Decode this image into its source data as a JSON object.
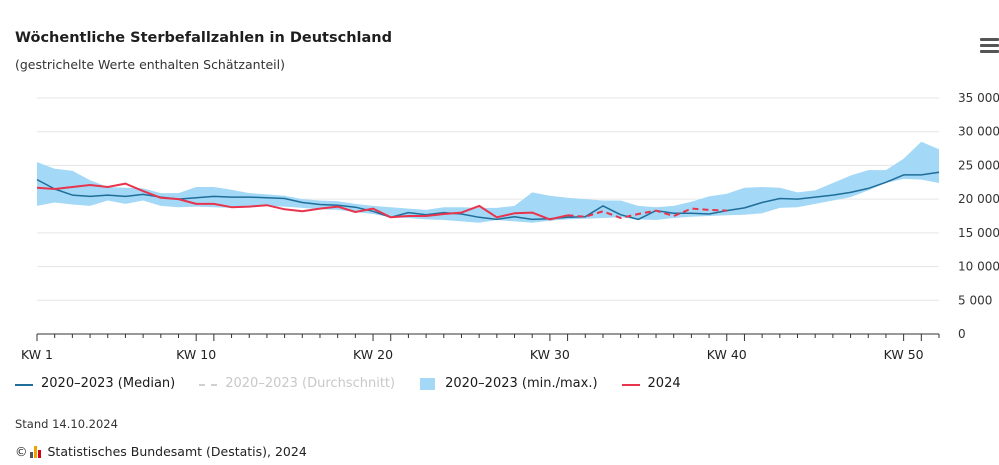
{
  "header": {
    "title": "Wöchentliche Sterbefallzahlen in Deutschland",
    "subtitle": "(gestrichelte Werte enthalten Schätzanteil)"
  },
  "legend": {
    "median": "2020–2023 (Median)",
    "mean": "2020–2023 (Durchschnitt)",
    "range": "2020–2023 (min./max.)",
    "current": "2024"
  },
  "footer": {
    "stand": "Stand 14.10.2024",
    "copyright": "©",
    "source": "Statistisches Bundesamt (Destatis), 2024"
  },
  "colors": {
    "median": "#1f6e99",
    "range": "#a3d8f7",
    "current": "#e8344d",
    "mean_muted": "#d0d0d0",
    "grid": "#e6e6e6",
    "axis": "#333333"
  },
  "chart_data": {
    "type": "line",
    "x_ticks": [
      "KW 1",
      "KW 10",
      "KW 20",
      "KW 30",
      "KW 40",
      "KW 50"
    ],
    "x_tick_weeks": [
      1,
      10,
      20,
      30,
      40,
      50
    ],
    "xlim": [
      1,
      52
    ],
    "y_ticks": [
      "0",
      "5 000",
      "10 000",
      "15 000",
      "20 000",
      "25 000",
      "30 000",
      "35 000"
    ],
    "y_tick_values": [
      0,
      5000,
      10000,
      15000,
      20000,
      25000,
      30000,
      35000
    ],
    "ylim": [
      0,
      35000
    ],
    "grid": "horizontal",
    "legend_position": "bottom",
    "weeks": [
      1,
      2,
      3,
      4,
      5,
      6,
      7,
      8,
      9,
      10,
      11,
      12,
      13,
      14,
      15,
      16,
      17,
      18,
      19,
      20,
      21,
      22,
      23,
      24,
      25,
      26,
      27,
      28,
      29,
      30,
      31,
      32,
      33,
      34,
      35,
      36,
      37,
      38,
      39,
      40,
      41,
      42,
      43,
      44,
      45,
      46,
      47,
      48,
      49,
      50,
      51,
      52
    ],
    "series": [
      {
        "name": "2020–2023 (min./max.)",
        "kind": "band",
        "min": [
          19000,
          19500,
          19200,
          19000,
          19800,
          19300,
          19800,
          19000,
          18800,
          18900,
          18800,
          18700,
          18800,
          19000,
          18900,
          18700,
          18500,
          18400,
          18100,
          17800,
          17300,
          17200,
          17000,
          16900,
          16700,
          16500,
          16900,
          16700,
          16500,
          16800,
          17000,
          17100,
          17200,
          17300,
          17000,
          16900,
          17200,
          17400,
          17500,
          17600,
          17700,
          17900,
          18700,
          18800,
          19300,
          19800,
          20300,
          21300,
          22400,
          23000,
          22900,
          22400
        ],
        "max": [
          25500,
          24500,
          24200,
          22800,
          21800,
          21700,
          21600,
          20900,
          20900,
          21800,
          21800,
          21400,
          20900,
          20700,
          20500,
          20000,
          19800,
          19700,
          19300,
          19000,
          18800,
          18600,
          18400,
          18800,
          18800,
          18700,
          18700,
          19000,
          21000,
          20500,
          20200,
          20000,
          19800,
          19800,
          19000,
          18800,
          19000,
          19600,
          20400,
          20800,
          21700,
          21800,
          21700,
          21000,
          21300,
          22400,
          23500,
          24300,
          24300,
          26000,
          28500,
          27400
        ]
      },
      {
        "name": "2020–2023 (Median)",
        "kind": "line",
        "values": [
          22900,
          21500,
          20600,
          20400,
          20600,
          20400,
          20700,
          20300,
          20000,
          20200,
          20400,
          20300,
          20300,
          20200,
          20100,
          19500,
          19200,
          19100,
          18800,
          18200,
          17300,
          18000,
          17700,
          18000,
          17800,
          17300,
          17000,
          17400,
          17000,
          17100,
          17300,
          17400,
          19000,
          17700,
          17000,
          18300,
          17900,
          17900,
          17800,
          18300,
          18700,
          19500,
          20100,
          20000,
          20300,
          20600,
          21000,
          21600,
          22500,
          23600,
          23600,
          24000
        ],
        "dashed_from_week": null
      },
      {
        "name": "2024",
        "kind": "line",
        "values": [
          21700,
          21500,
          21800,
          22100,
          21800,
          22300,
          21200,
          20200,
          20000,
          19300,
          19300,
          18800,
          18900,
          19100,
          18500,
          18200,
          18600,
          18900,
          18100,
          18600,
          17300,
          17500,
          17500,
          17800,
          18000,
          19000,
          17300,
          17900,
          18000,
          17000,
          17600,
          17400,
          18200,
          17200,
          17800,
          18300,
          17500,
          18600,
          18400,
          18300,
          null,
          null,
          null,
          null,
          null,
          null,
          null,
          null,
          null,
          null,
          null,
          null
        ],
        "dashed_from_week": 31
      }
    ]
  }
}
